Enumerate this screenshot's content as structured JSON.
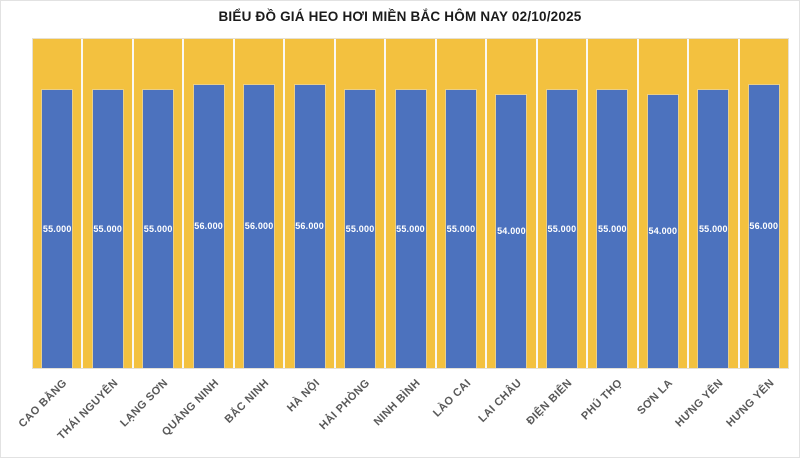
{
  "title": "BIỂU ĐỒ GIÁ HEO HƠI MIỀN BẮC HÔM NAY 02/10/2025",
  "colors": {
    "bar_fill": "#4c72be",
    "plot_background": "#f3c13f",
    "category_separator": "#faf8f2",
    "value_label_text": "#ffffff",
    "axis_label_text": "#595959",
    "title_text": "#1b1b1b",
    "page_background": "#ffffff"
  },
  "chart_data": {
    "type": "bar",
    "title": "BIỂU ĐỒ GIÁ HEO HƠI MIỀN BẮC HÔM NAY 02/10/2025",
    "categories": [
      "CAO BẰNG",
      "THÁI NGUYÊN",
      "LẠNG SƠN",
      "QUẢNG NINH",
      "BẮC NINH",
      "HÀ NỘI",
      "HẢI PHÒNG",
      "NINH BÌNH",
      "LÀO CAI",
      "LAI CHÂU",
      "ĐIỆN BIÊN",
      "PHÚ THỌ",
      "SƠN LA",
      "HƯNG YÊN",
      "HƯNG YÊN"
    ],
    "values": [
      55000,
      55000,
      55000,
      56000,
      56000,
      56000,
      55000,
      55000,
      55000,
      54000,
      55000,
      55000,
      54000,
      55000,
      56000
    ],
    "value_labels": [
      "55.000",
      "55.000",
      "55.000",
      "56.000",
      "56.000",
      "56.000",
      "55.000",
      "55.000",
      "55.000",
      "54.000",
      "55.000",
      "55.000",
      "54.000",
      "55.000",
      "56.000"
    ],
    "xlabel": "",
    "ylabel": "",
    "ylim": [
      0,
      65000
    ],
    "y_axis_visible": false,
    "grid": "vertical category separators only",
    "legend": "none",
    "data_label_position": "inside-center",
    "x_label_rotation_deg": 45
  }
}
